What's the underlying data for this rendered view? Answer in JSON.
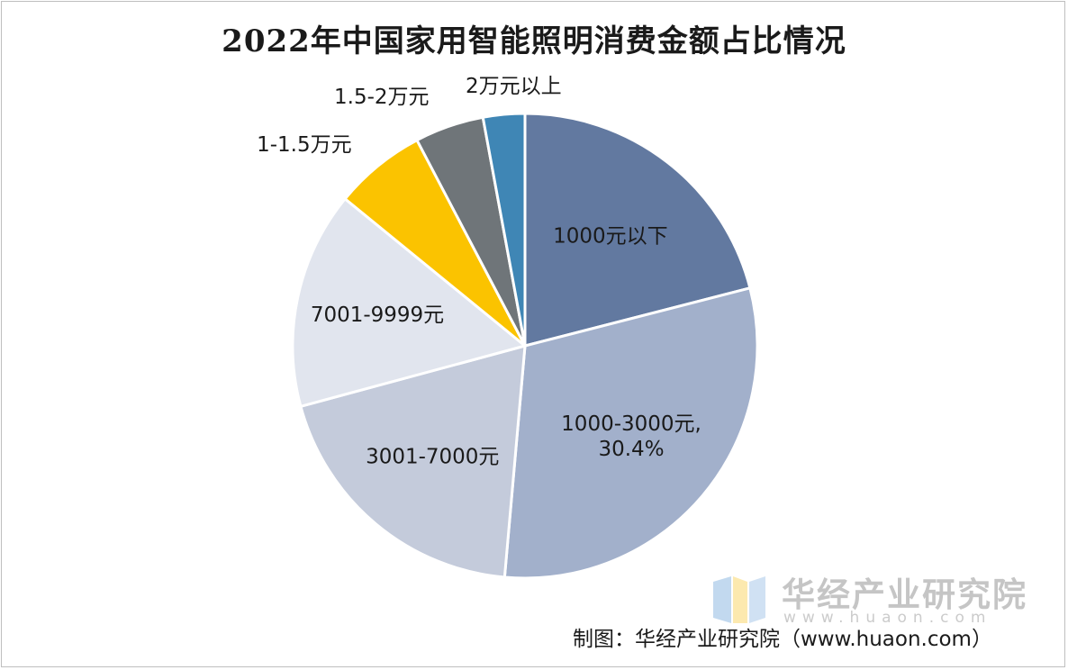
{
  "chart_data": {
    "type": "pie",
    "title": "2022年中国家用智能照明消费金额占比情况",
    "categories": [
      "1000元以下",
      "1000-3000元",
      "3001-7000元",
      "7001-9999元",
      "1-1.5万元",
      "1.5-2万元",
      "2万元以上"
    ],
    "values": [
      21.0,
      30.4,
      19.4,
      15.1,
      6.4,
      4.8,
      2.9
    ],
    "labels": [
      "1000元以下",
      "1000-3000元,\n30.4%",
      "3001-7000元",
      "7001-9999元",
      "1-1.5万元",
      "1.5-2万元",
      "2万元以上"
    ],
    "colors": [
      "#6279a0",
      "#a2b0cb",
      "#c4cbdb",
      "#e1e5ee",
      "#fbc300",
      "#6f7579",
      "#3f86b5"
    ],
    "start_angle_deg": 0,
    "direction": "clockwise",
    "legend": "none"
  },
  "watermark": {
    "name": "华经产业研究院",
    "url": "www.huaon.com"
  },
  "source": "制图：华经产业研究院（www.huaon.com）"
}
